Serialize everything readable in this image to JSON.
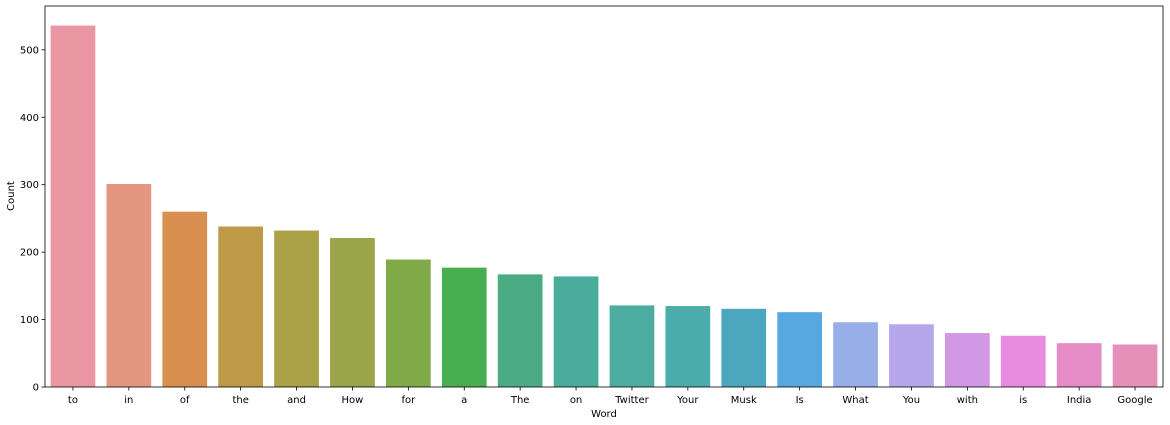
{
  "chart_data": {
    "type": "bar",
    "title": "",
    "xlabel": "Word",
    "ylabel": "Count",
    "ylim": [
      0,
      565
    ],
    "yticks": [
      0,
      100,
      200,
      300,
      400,
      500
    ],
    "grid": false,
    "categories": [
      "to",
      "in",
      "of",
      "the",
      "and",
      "How",
      "for",
      "a",
      "The",
      "on",
      "Twitter",
      "Your",
      "Musk",
      "Is",
      "What",
      "You",
      "with",
      "is",
      "India",
      "Google"
    ],
    "values": [
      536,
      301,
      260,
      238,
      232,
      221,
      189,
      177,
      167,
      164,
      121,
      120,
      116,
      111,
      96,
      93,
      80,
      76,
      65,
      63
    ],
    "colors": [
      "#ea96a3",
      "#e59681",
      "#d88f4f",
      "#bd9a48",
      "#aba248",
      "#9aa44a",
      "#80a948",
      "#48ae4f",
      "#4bac83",
      "#4aad9c",
      "#4cac9f",
      "#4aadab",
      "#4ca6bd",
      "#55a9e0",
      "#97aee8",
      "#b6a7ec",
      "#d198e6",
      "#e78be1",
      "#e58cc7",
      "#e590b8"
    ]
  }
}
